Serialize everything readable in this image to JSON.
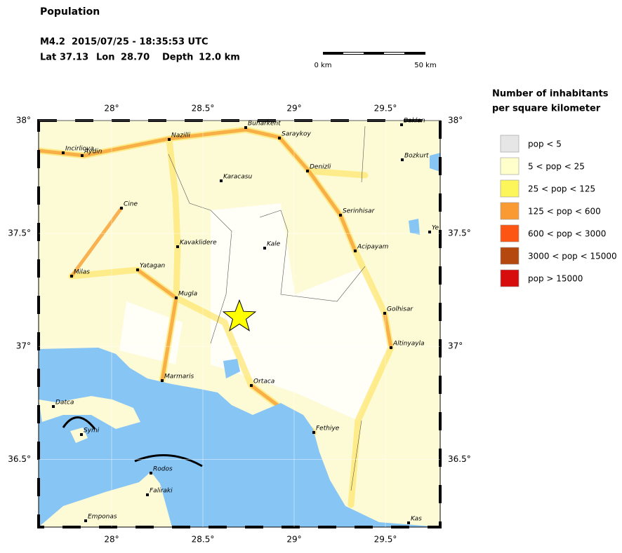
{
  "header": {
    "title": "Population",
    "event": "M4.2  2015/07/25 - 18:35:53 UTC",
    "location": {
      "lat_label": "Lat",
      "lat": {
        "value": 37.13,
        "label": "37.13"
      },
      "lon_label": "Lon",
      "lon": {
        "value": 28.7,
        "label": "28.70"
      },
      "depth_label": "Depth",
      "depth": "12.0 km"
    }
  },
  "scale_bar": {
    "start": "0 km",
    "end": "50 km"
  },
  "map": {
    "xlim": [
      27.6,
      29.8
    ],
    "ylim": [
      36.2,
      38
    ],
    "xticks": [
      {
        "value": 28,
        "label": "28°"
      },
      {
        "value": 28.5,
        "label": "28.5°"
      },
      {
        "value": 29,
        "label": "29°"
      },
      {
        "value": 29.5,
        "label": "29.5°"
      }
    ],
    "yticks": [
      {
        "value": 38,
        "label": "38°"
      },
      {
        "value": 37.5,
        "label": "37.5°"
      },
      {
        "value": 37,
        "label": "37°"
      },
      {
        "value": 36.5,
        "label": "36.5°"
      }
    ],
    "epicenter_color": "#ffff00",
    "cities": [
      "Buharkent",
      "Baklan",
      "Nazilli",
      "Saraykoy",
      "Incirliova",
      "Aydin",
      "Bozkurt",
      "Denizli",
      "Karacasu",
      "Cine",
      "Serinhisar",
      "Ye",
      "Kavaklidere",
      "Kale",
      "Acipayam",
      "Milas",
      "Yatagan",
      "Mugla",
      "Golhisar",
      "Altinyayla",
      "Marmaris",
      "Ortaca",
      "Datca",
      "Fethiye",
      "Symi",
      "Rodos",
      "Faliraki",
      "Emponas",
      "Kas"
    ]
  },
  "legend": {
    "title": [
      "Number of inhabitants",
      "per square kilometer"
    ],
    "items": [
      {
        "label": "pop < 5",
        "color": "#e6e6e6"
      },
      {
        "label": "5 < pop < 25",
        "color": "#ffffcc"
      },
      {
        "label": "25 < pop < 125",
        "color": "#fcf65b"
      },
      {
        "label": "125 < pop < 600",
        "color": "#f99a33"
      },
      {
        "label": "600 < pop < 3000",
        "color": "#fd5614"
      },
      {
        "label": "3000 < pop < 15000",
        "color": "#b4480f"
      },
      {
        "label": "pop > 15000",
        "color": "#d70c0c"
      }
    ]
  }
}
